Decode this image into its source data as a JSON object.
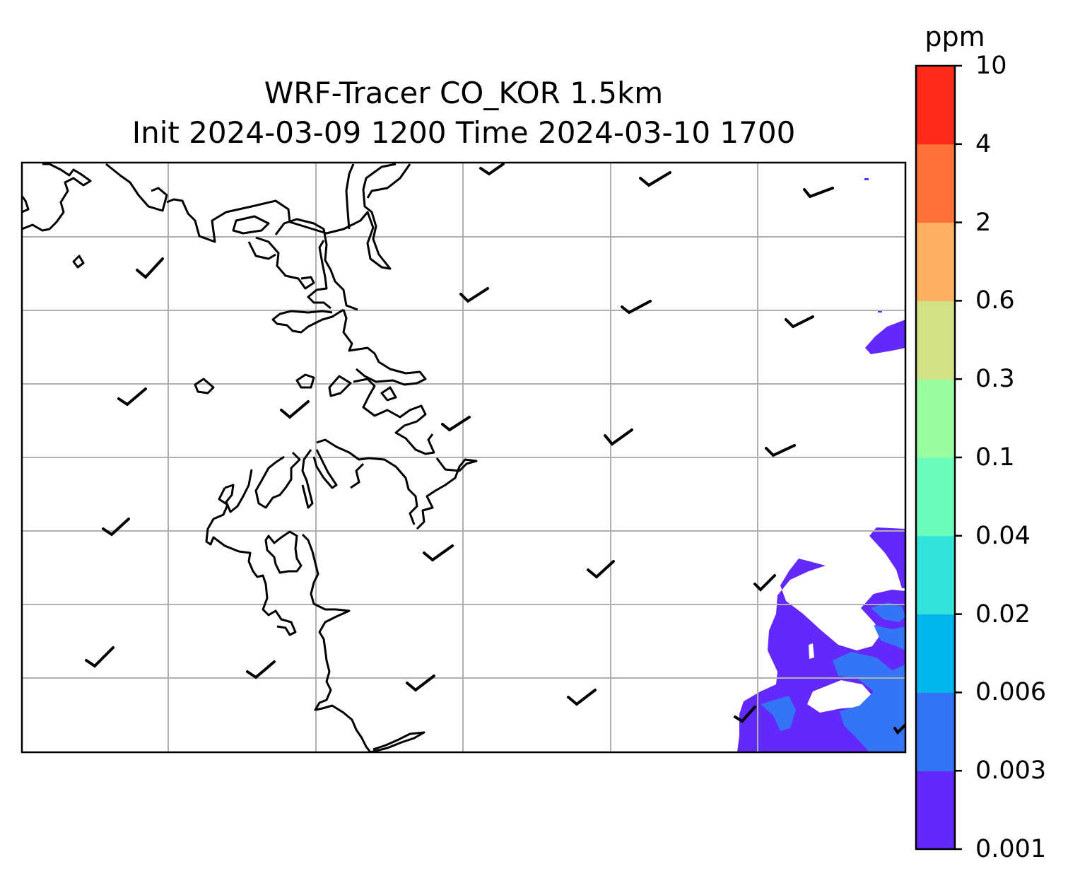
{
  "title": {
    "line1": "WRF-Tracer CO_KOR 1.5km",
    "line2": "Init 2024-03-09 1200 Time 2024-03-10 1700"
  },
  "colorbar": {
    "unit": "ppm",
    "levels": [
      "0.001",
      "0.003",
      "0.006",
      "0.02",
      "0.04",
      "0.1",
      "0.3",
      "0.6",
      "2",
      "4",
      "10"
    ],
    "colors": [
      "#6328fc",
      "#3375f4",
      "#00b6ec",
      "#33e2d8",
      "#6cfdbc",
      "#9afea0",
      "#d2e185",
      "#fdb062",
      "#fe7139",
      "#fd2a1a"
    ]
  },
  "map": {
    "coastline_color": "#000000",
    "grid_color": "#b0b0b0",
    "barb_color": "#000000",
    "tracer_region": "east edge, low concentrations (0.001–0.006 ppm)"
  }
}
